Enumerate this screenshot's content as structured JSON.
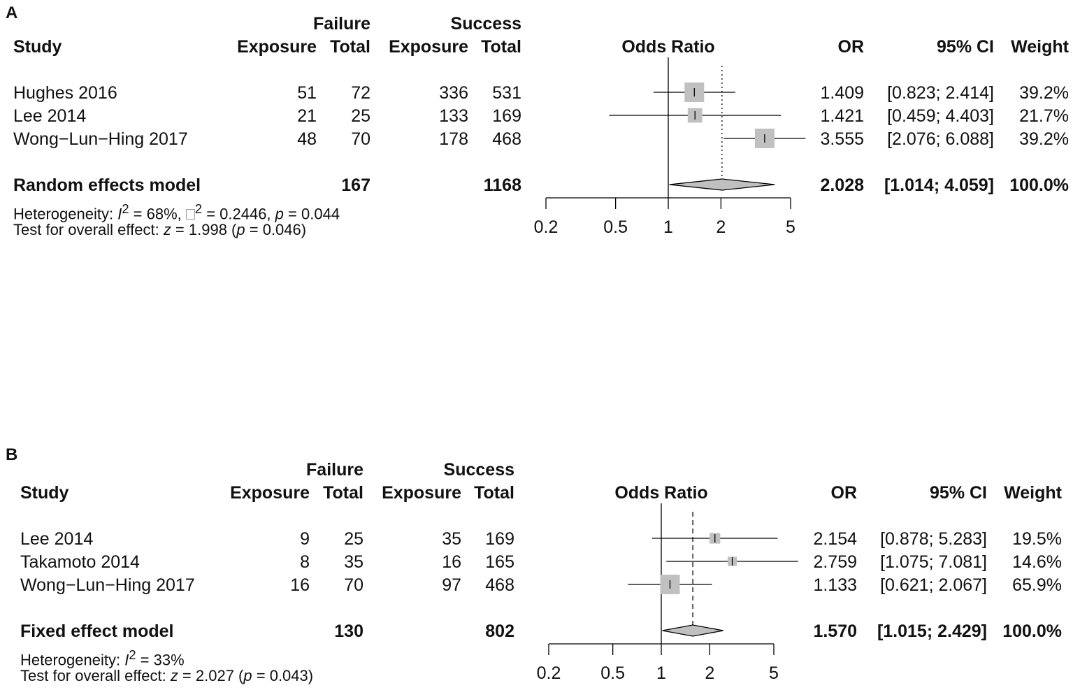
{
  "chart_data": [
    {
      "type": "forest",
      "panel": "A",
      "headers": {
        "failure": "Failure",
        "success": "Success",
        "study": "Study",
        "exposure": "Exposure",
        "total": "Total",
        "odds_ratio": "Odds Ratio",
        "or": "OR",
        "ci": "95% CI",
        "weight": "Weight"
      },
      "studies": [
        {
          "name": "Hughes 2016",
          "f_exp": "51",
          "f_tot": "72",
          "s_exp": "336",
          "s_tot": "531",
          "or_text": "1.409",
          "ci_text": "[0.823; 2.414]",
          "weight_text": "39.2%",
          "or": 1.409,
          "lo": 0.823,
          "hi": 2.414,
          "weight": 39.2
        },
        {
          "name": "Lee 2014",
          "f_exp": "21",
          "f_tot": "25",
          "s_exp": "133",
          "s_tot": "169",
          "or_text": "1.421",
          "ci_text": "[0.459; 4.403]",
          "weight_text": "21.7%",
          "or": 1.421,
          "lo": 0.459,
          "hi": 4.403,
          "weight": 21.7
        },
        {
          "name": "Wong−Lun−Hing 2017",
          "f_exp": "48",
          "f_tot": "70",
          "s_exp": "178",
          "s_tot": "468",
          "or_text": "3.555",
          "ci_text": "[2.076; 6.088]",
          "weight_text": "39.2%",
          "or": 3.555,
          "lo": 2.076,
          "hi": 6.088,
          "weight": 39.2
        }
      ],
      "model": {
        "name": "Random effects model",
        "f_tot": "167",
        "s_tot": "1168",
        "or_text": "2.028",
        "ci_text": "[1.014; 4.059]",
        "weight_text": "100.0%",
        "or": 2.028,
        "lo": 1.014,
        "hi": 4.059,
        "line_style": "dotted"
      },
      "heterogeneity": {
        "label": "Heterogeneity: ",
        "i2_sym": "I",
        "sup": "2",
        "i2_value": " = 68%, ",
        "tau_sup": "2",
        "tau_value": " = 0.2446, ",
        "p_sym": "p",
        "p_value": " = 0.044"
      },
      "overall": {
        "label": "Test for overall effect: ",
        "z_sym": "z",
        "z_value": " = 1.998 (",
        "p_sym": "p",
        "p_value": " = 0.046)"
      },
      "x_ticks": [
        0.2,
        0.5,
        1,
        2,
        5
      ],
      "x_tick_labels": [
        "0.2",
        "0.5",
        "1",
        "2",
        "5"
      ],
      "x_scale": "log"
    },
    {
      "type": "forest",
      "panel": "B",
      "headers": {
        "failure": "Failure",
        "success": "Success",
        "study": "Study",
        "exposure": "Exposure",
        "total": "Total",
        "odds_ratio": "Odds Ratio",
        "or": "OR",
        "ci": "95% CI",
        "weight": "Weight"
      },
      "studies": [
        {
          "name": "Lee 2014",
          "f_exp": "9",
          "f_tot": "25",
          "s_exp": "35",
          "s_tot": "169",
          "or_text": "2.154",
          "ci_text": "[0.878; 5.283]",
          "weight_text": "19.5%",
          "or": 2.154,
          "lo": 0.878,
          "hi": 5.283,
          "weight": 19.5
        },
        {
          "name": "Takamoto 2014",
          "f_exp": "8",
          "f_tot": "35",
          "s_exp": "16",
          "s_tot": "165",
          "or_text": "2.759",
          "ci_text": "[1.075; 7.081]",
          "weight_text": "14.6%",
          "or": 2.759,
          "lo": 1.075,
          "hi": 7.081,
          "weight": 14.6
        },
        {
          "name": "Wong−Lun−Hing 2017",
          "f_exp": "16",
          "f_tot": "70",
          "s_exp": "97",
          "s_tot": "468",
          "or_text": "1.133",
          "ci_text": "[0.621; 2.067]",
          "weight_text": "65.9%",
          "or": 1.133,
          "lo": 0.621,
          "hi": 2.067,
          "weight": 65.9
        }
      ],
      "model": {
        "name": "Fixed effect model",
        "f_tot": "130",
        "s_tot": "802",
        "or_text": "1.570",
        "ci_text": "[1.015; 2.429]",
        "weight_text": "100.0%",
        "or": 1.57,
        "lo": 1.015,
        "hi": 2.429,
        "line_style": "dashed"
      },
      "heterogeneity": {
        "label": "Heterogeneity: ",
        "i2_sym": "I",
        "sup": "2",
        "i2_value": " = 33%"
      },
      "overall": {
        "label": "Test for overall effect: ",
        "z_sym": "z",
        "z_value": " = 2.027 (",
        "p_sym": "p",
        "p_value": " = 0.043)"
      },
      "x_ticks": [
        0.2,
        0.5,
        1,
        2,
        5
      ],
      "x_tick_labels": [
        "0.2",
        "0.5",
        "1",
        "2",
        "5"
      ],
      "x_scale": "log"
    }
  ]
}
